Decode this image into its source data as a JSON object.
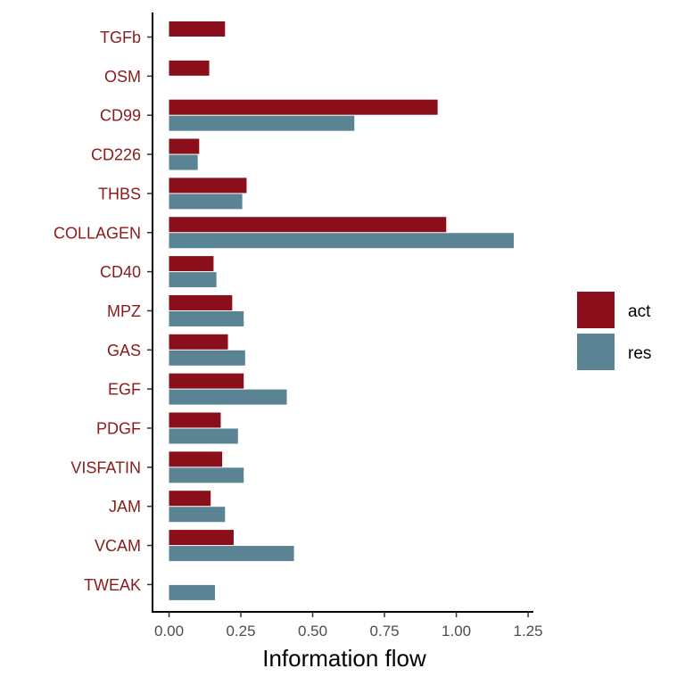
{
  "chart_data": {
    "type": "bar",
    "orientation": "horizontal",
    "title": "",
    "xlabel": "Information flow",
    "ylabel": "",
    "xlim": [
      -0.055,
      1.31
    ],
    "x_ticks": [
      "0.00",
      "0.25",
      "0.50",
      "0.75",
      "1.00",
      "1.25"
    ],
    "x_tick_values": [
      0,
      0.25,
      0.5,
      0.75,
      1.0,
      1.25
    ],
    "categories": [
      "TGFb",
      "OSM",
      "CD99",
      "CD226",
      "THBS",
      "COLLAGEN",
      "CD40",
      "MPZ",
      "GAS",
      "EGF",
      "PDGF",
      "VISFATIN",
      "JAM",
      "VCAM",
      "TWEAK"
    ],
    "category_label_color": "#8b1a1a",
    "series": [
      {
        "name": "act",
        "color": "#8b0f1a",
        "values": [
          0.195,
          0.14,
          0.935,
          0.105,
          0.27,
          0.965,
          0.155,
          0.22,
          0.205,
          0.26,
          0.18,
          0.185,
          0.145,
          0.225,
          null
        ]
      },
      {
        "name": "res",
        "color": "#5a8494",
        "values": [
          null,
          null,
          0.645,
          0.1,
          0.255,
          1.2,
          0.165,
          0.26,
          0.265,
          0.41,
          0.24,
          0.26,
          0.195,
          0.435,
          0.16
        ]
      }
    ],
    "grid": false,
    "legend_position": "right"
  }
}
